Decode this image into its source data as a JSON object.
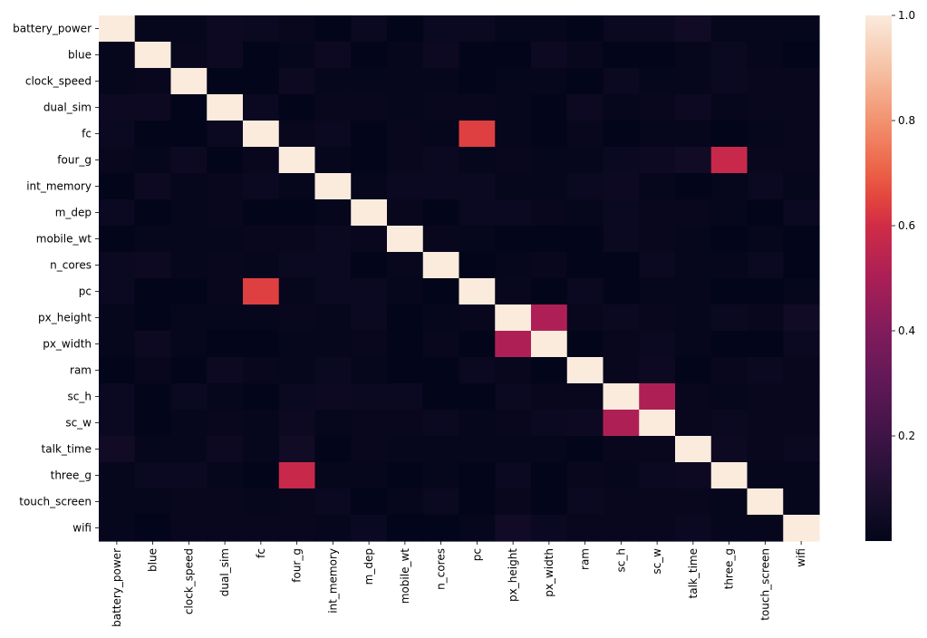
{
  "chart_data": {
    "type": "heatmap",
    "title": "",
    "xlabel": "",
    "ylabel": "",
    "labels": [
      "battery_power",
      "blue",
      "clock_speed",
      "dual_sim",
      "fc",
      "four_g",
      "int_memory",
      "m_dep",
      "mobile_wt",
      "n_cores",
      "pc",
      "px_height",
      "px_width",
      "ram",
      "sc_h",
      "sc_w",
      "talk_time",
      "three_g",
      "touch_screen",
      "wifi"
    ],
    "colorbar": {
      "ticks": [
        0.2,
        0.4,
        0.6,
        0.8,
        1.0
      ],
      "tick_labels": [
        "0.2",
        "0.4",
        "0.6",
        "0.8",
        "1.0"
      ],
      "min": 0.0,
      "max": 1.0,
      "colormap": "rocket"
    },
    "matrix": [
      [
        1.0,
        0.01,
        0.01,
        0.04,
        0.03,
        0.02,
        0.0,
        0.03,
        0.0,
        0.03,
        0.03,
        0.01,
        0.01,
        0.0,
        0.03,
        0.03,
        0.05,
        0.01,
        0.01,
        0.01
      ],
      [
        0.01,
        1.0,
        0.02,
        0.04,
        0.0,
        0.01,
        0.04,
        0.0,
        0.01,
        0.04,
        0.0,
        0.0,
        0.04,
        0.02,
        0.0,
        0.0,
        0.01,
        0.03,
        0.01,
        0.0
      ],
      [
        0.01,
        0.02,
        1.0,
        0.0,
        0.0,
        0.04,
        0.01,
        0.01,
        0.01,
        0.01,
        0.0,
        0.01,
        0.01,
        0.0,
        0.03,
        0.01,
        0.01,
        0.03,
        0.02,
        0.02
      ],
      [
        0.04,
        0.04,
        0.0,
        1.0,
        0.03,
        0.0,
        0.02,
        0.02,
        0.01,
        0.02,
        0.02,
        0.01,
        0.0,
        0.04,
        0.01,
        0.02,
        0.04,
        0.01,
        0.02,
        0.02
      ],
      [
        0.03,
        0.0,
        0.0,
        0.03,
        1.0,
        0.02,
        0.03,
        0.0,
        0.02,
        0.01,
        0.64,
        0.01,
        0.0,
        0.02,
        0.0,
        0.01,
        0.01,
        0.0,
        0.01,
        0.02
      ],
      [
        0.02,
        0.01,
        0.04,
        0.0,
        0.02,
        1.0,
        0.01,
        0.0,
        0.02,
        0.03,
        0.01,
        0.02,
        0.01,
        0.01,
        0.03,
        0.04,
        0.05,
        0.58,
        0.02,
        0.02
      ],
      [
        0.0,
        0.04,
        0.01,
        0.02,
        0.03,
        0.01,
        1.0,
        0.01,
        0.03,
        0.03,
        0.03,
        0.01,
        0.01,
        0.03,
        0.04,
        0.01,
        0.0,
        0.01,
        0.03,
        0.01
      ],
      [
        0.03,
        0.0,
        0.01,
        0.02,
        0.0,
        0.0,
        0.01,
        1.0,
        0.02,
        0.0,
        0.03,
        0.03,
        0.02,
        0.01,
        0.03,
        0.02,
        0.02,
        0.01,
        0.0,
        0.03
      ],
      [
        0.0,
        0.01,
        0.01,
        0.01,
        0.02,
        0.02,
        0.03,
        0.02,
        1.0,
        0.02,
        0.01,
        0.0,
        0.0,
        0.0,
        0.03,
        0.02,
        0.01,
        0.0,
        0.01,
        0.0
      ],
      [
        0.03,
        0.04,
        0.01,
        0.02,
        0.01,
        0.03,
        0.03,
        0.0,
        0.02,
        1.0,
        0.0,
        0.01,
        0.02,
        0.0,
        0.0,
        0.03,
        0.01,
        0.01,
        0.03,
        0.0
      ],
      [
        0.03,
        0.0,
        0.0,
        0.02,
        0.64,
        0.01,
        0.03,
        0.03,
        0.01,
        0.0,
        1.0,
        0.02,
        0.0,
        0.03,
        0.0,
        0.01,
        0.01,
        0.0,
        0.0,
        0.01
      ],
      [
        0.01,
        0.0,
        0.01,
        0.01,
        0.01,
        0.02,
        0.01,
        0.03,
        0.0,
        0.01,
        0.02,
        1.0,
        0.51,
        0.02,
        0.03,
        0.02,
        0.01,
        0.03,
        0.02,
        0.05
      ],
      [
        0.01,
        0.04,
        0.01,
        0.0,
        0.0,
        0.01,
        0.01,
        0.02,
        0.0,
        0.02,
        0.0,
        0.51,
        1.0,
        0.0,
        0.02,
        0.03,
        0.01,
        0.0,
        0.0,
        0.03
      ],
      [
        0.0,
        0.02,
        0.0,
        0.04,
        0.02,
        0.01,
        0.03,
        0.01,
        0.0,
        0.0,
        0.03,
        0.02,
        0.0,
        1.0,
        0.02,
        0.04,
        0.0,
        0.02,
        0.03,
        0.02
      ],
      [
        0.03,
        0.0,
        0.03,
        0.01,
        0.0,
        0.03,
        0.04,
        0.03,
        0.03,
        0.0,
        0.0,
        0.03,
        0.02,
        0.02,
        1.0,
        0.51,
        0.02,
        0.01,
        0.02,
        0.02
      ],
      [
        0.03,
        0.0,
        0.01,
        0.02,
        0.01,
        0.04,
        0.01,
        0.02,
        0.02,
        0.03,
        0.01,
        0.02,
        0.03,
        0.04,
        0.51,
        1.0,
        0.02,
        0.03,
        0.02,
        0.02
      ],
      [
        0.05,
        0.01,
        0.01,
        0.04,
        0.01,
        0.05,
        0.0,
        0.02,
        0.01,
        0.01,
        0.01,
        0.01,
        0.01,
        0.0,
        0.02,
        0.02,
        1.0,
        0.04,
        0.02,
        0.03
      ],
      [
        0.01,
        0.03,
        0.03,
        0.01,
        0.0,
        0.58,
        0.01,
        0.01,
        0.0,
        0.01,
        0.0,
        0.03,
        0.0,
        0.02,
        0.01,
        0.03,
        0.04,
        1.0,
        0.01,
        0.01
      ],
      [
        0.01,
        0.01,
        0.02,
        0.02,
        0.01,
        0.02,
        0.03,
        0.0,
        0.01,
        0.03,
        0.0,
        0.02,
        0.0,
        0.03,
        0.02,
        0.02,
        0.02,
        0.01,
        1.0,
        0.01
      ],
      [
        0.01,
        0.0,
        0.02,
        0.02,
        0.02,
        0.02,
        0.01,
        0.03,
        0.0,
        0.0,
        0.01,
        0.05,
        0.03,
        0.02,
        0.02,
        0.02,
        0.03,
        0.01,
        0.01,
        1.0
      ]
    ]
  }
}
